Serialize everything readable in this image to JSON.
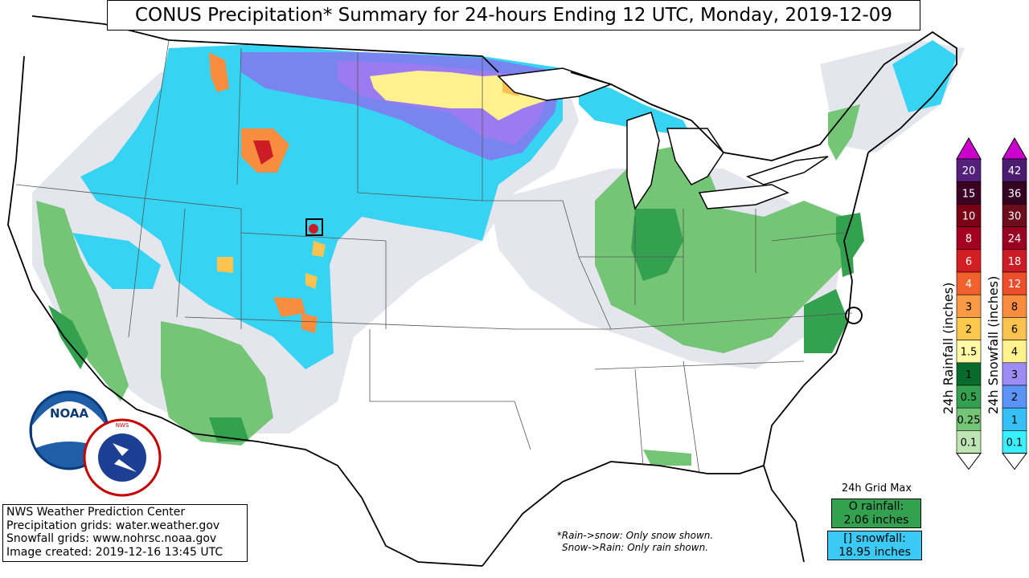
{
  "title": "CONUS Precipitation* Summary for 24-hours Ending 12 UTC, Monday, 2019-12-09",
  "credits": [
    "NWS Weather Prediction Center",
    "Precipitation grids: water.weather.gov",
    "Snowfall grids: www.nohrsc.noaa.gov",
    "Image created: 2019-12-16 13:45 UTC"
  ],
  "footnote": {
    "line1": "*Rain->snow: Only snow shown.",
    "line2": "Snow->Rain: Only rain shown."
  },
  "grid_max": {
    "title": "24h Grid Max",
    "rain_label": "O rainfall:",
    "rain_value": "2.06 inches",
    "snow_label": "[] snowfall:",
    "snow_value": "18.95 inches"
  },
  "logos": {
    "noaa": "NOAA",
    "nws": "NATIONAL WEATHER SERVICE"
  },
  "rain_legend": {
    "label": "24h Rainfall (inches)",
    "levels": [
      "20",
      "15",
      "10",
      "8",
      "6",
      "4",
      "3",
      "2",
      "1.5",
      "1",
      "0.5",
      "0.25",
      "0.1"
    ],
    "colors": [
      "#54207c",
      "#3b0024",
      "#7a0016",
      "#a4001f",
      "#d41e26",
      "#f2602c",
      "#f99b46",
      "#fcc94e",
      "#fff8a4",
      "#086a2d",
      "#33a14f",
      "#74c576",
      "#bfe5b4"
    ],
    "top_arrow_color": "#cc00cc",
    "bottom_arrow_color": "#ffffff"
  },
  "snow_legend": {
    "label": "24h Snowfall (inches)",
    "levels": [
      "42",
      "36",
      "30",
      "24",
      "18",
      "12",
      "8",
      "6",
      "4",
      "3",
      "2",
      "1",
      "0.1"
    ],
    "colors": [
      "#4a1b6e",
      "#330022",
      "#6b0d1c",
      "#9a0022",
      "#cc1c26",
      "#ef4e2c",
      "#f88c3f",
      "#fcc24f",
      "#fff28e",
      "#9c8cf4",
      "#5b94f6",
      "#36c0f5",
      "#3af0ff"
    ],
    "top_arrow_color": "#cc00cc",
    "bottom_arrow_color": "#ffffff"
  },
  "max_markers": {
    "rain": "O",
    "snow": "[]"
  }
}
